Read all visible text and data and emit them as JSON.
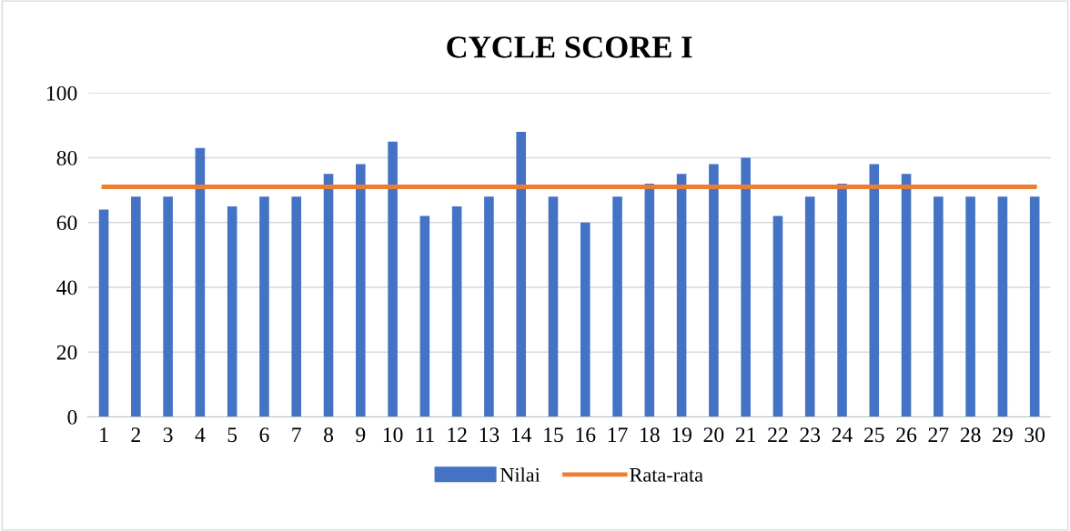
{
  "chart_data": {
    "type": "bar",
    "title": "CYCLE SCORE I",
    "categories": [
      "1",
      "2",
      "3",
      "4",
      "5",
      "6",
      "7",
      "8",
      "9",
      "10",
      "11",
      "12",
      "13",
      "14",
      "15",
      "16",
      "17",
      "18",
      "19",
      "20",
      "21",
      "22",
      "23",
      "24",
      "25",
      "26",
      "27",
      "28",
      "29",
      "30"
    ],
    "series": [
      {
        "name": "Nilai",
        "color": "#4472c4",
        "values": [
          64,
          68,
          68,
          83,
          65,
          68,
          68,
          75,
          78,
          85,
          62,
          65,
          68,
          88,
          68,
          60,
          68,
          72,
          75,
          78,
          80,
          62,
          68,
          72,
          78,
          75,
          68,
          68,
          68,
          68
        ]
      },
      {
        "name": "Rata-rata",
        "type": "line",
        "color": "#ed7d31",
        "values": [
          71,
          71,
          71,
          71,
          71,
          71,
          71,
          71,
          71,
          71,
          71,
          71,
          71,
          71,
          71,
          71,
          71,
          71,
          71,
          71,
          71,
          71,
          71,
          71,
          71,
          71,
          71,
          71,
          71,
          71
        ]
      }
    ],
    "ylim": [
      0,
      100
    ],
    "yticks": [
      0,
      20,
      40,
      60,
      80,
      100
    ],
    "grid": "y",
    "legend": "bottom"
  }
}
